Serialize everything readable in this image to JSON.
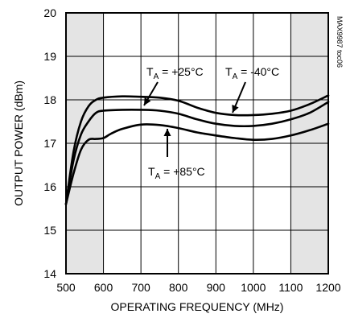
{
  "chart_data": {
    "type": "line",
    "xlabel": "OPERATING FREQUENCY (MHz)",
    "ylabel": "OUTPUT POWER (dBm)",
    "xlim": [
      500,
      1200
    ],
    "ylim": [
      14,
      20
    ],
    "xticks": [
      500,
      600,
      700,
      800,
      900,
      1000,
      1100,
      1200
    ],
    "yticks": [
      14,
      15,
      16,
      17,
      18,
      19,
      20
    ],
    "grid": true,
    "shaded_bands": [
      [
        500,
        600
      ],
      [
        1100,
        1200
      ]
    ],
    "watermark": "MAX9987 toc06",
    "series": [
      {
        "name": "TA = -40°C",
        "x": [
          500,
          520,
          540,
          560,
          580,
          600,
          650,
          700,
          750,
          800,
          850,
          900,
          950,
          1000,
          1050,
          1100,
          1150,
          1200
        ],
        "y": [
          15.6,
          16.8,
          17.5,
          17.85,
          18.0,
          18.05,
          18.08,
          18.07,
          18.05,
          17.98,
          17.82,
          17.7,
          17.65,
          17.65,
          17.68,
          17.75,
          17.9,
          18.1
        ]
      },
      {
        "name": "TA = +25°C",
        "x": [
          500,
          520,
          540,
          560,
          580,
          600,
          650,
          700,
          750,
          800,
          850,
          900,
          950,
          1000,
          1050,
          1100,
          1150,
          1200
        ],
        "y": [
          15.6,
          16.6,
          17.2,
          17.5,
          17.7,
          17.75,
          17.77,
          17.77,
          17.75,
          17.68,
          17.55,
          17.45,
          17.4,
          17.4,
          17.45,
          17.55,
          17.7,
          17.95
        ]
      },
      {
        "name": "TA = +85°C",
        "x": [
          500,
          520,
          540,
          560,
          580,
          600,
          620,
          650,
          700,
          750,
          800,
          850,
          900,
          950,
          1000,
          1050,
          1100,
          1150,
          1200
        ],
        "y": [
          15.6,
          16.3,
          16.85,
          17.08,
          17.1,
          17.12,
          17.22,
          17.33,
          17.43,
          17.42,
          17.35,
          17.25,
          17.18,
          17.12,
          17.08,
          17.1,
          17.18,
          17.3,
          17.45
        ]
      }
    ],
    "annotations": [
      {
        "main": "T",
        "sub": "A",
        "rest": " = +25°C",
        "series": "TA = +25°C"
      },
      {
        "main": "T",
        "sub": "A",
        "rest": " = -40°C",
        "series": "TA = -40°C"
      },
      {
        "main": "T",
        "sub": "A",
        "rest": " = +85°C",
        "series": "TA = +85°C"
      }
    ],
    "colors": {
      "curve": "#000000",
      "shade": "#e4e4e4",
      "grid": "#000000",
      "background": "#ffffff"
    }
  }
}
